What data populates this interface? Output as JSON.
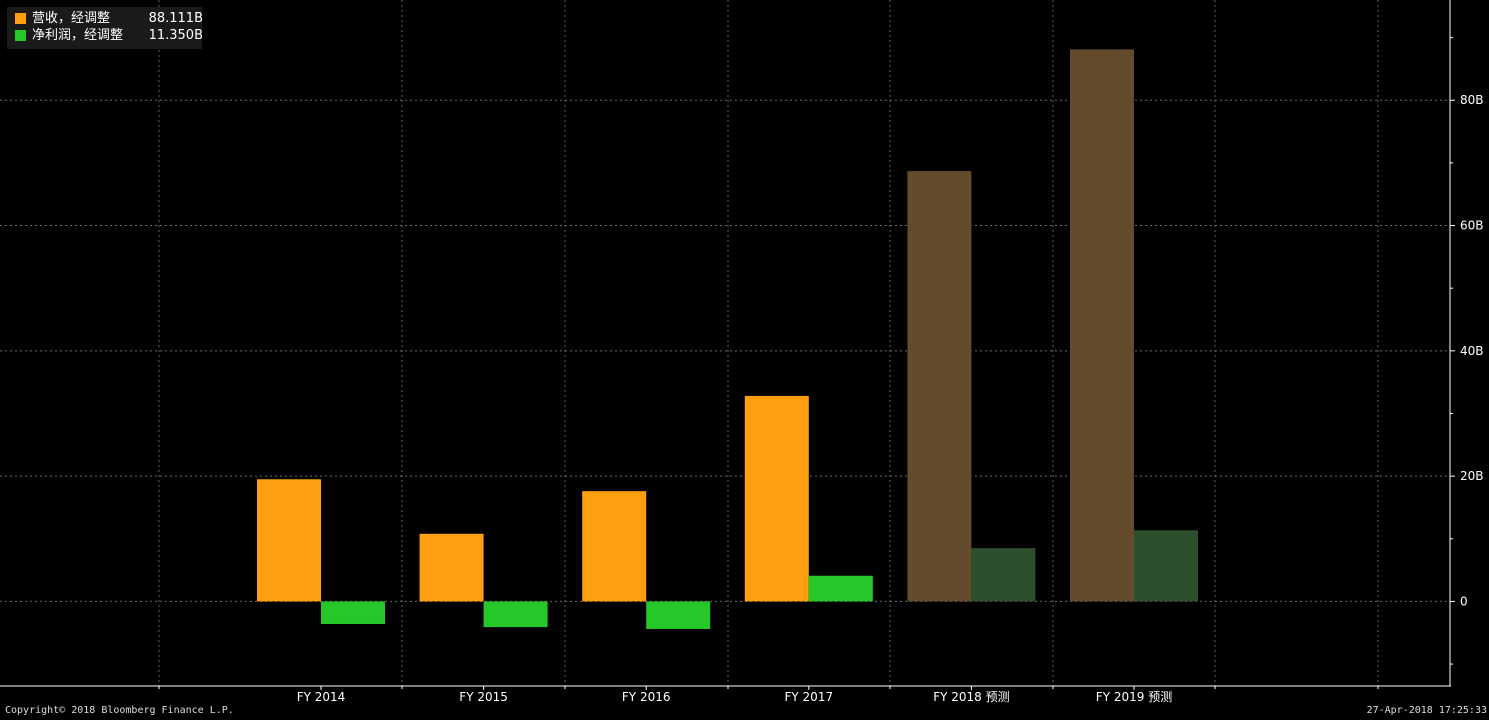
{
  "chart_data": {
    "type": "bar",
    "categories": [
      "FY 2014",
      "FY 2015",
      "FY 2016",
      "FY 2017",
      "FY 2018 预测",
      "FY 2019 预测"
    ],
    "series": [
      {
        "name": "营收，经调整",
        "values": [
          19.5,
          10.8,
          17.6,
          32.8,
          68.7,
          88.111
        ],
        "color": "#ff9f10",
        "estimate_color": "#634b2b"
      },
      {
        "name": "净利润，经调整",
        "values": [
          -3.6,
          -4.1,
          -4.4,
          4.1,
          8.5,
          11.35
        ],
        "color": "#26c729",
        "estimate_color": "#2e4f2e"
      }
    ],
    "estimate_from_index": 4,
    "ylim": [
      -13.5,
      96
    ],
    "yticks": [
      0,
      20,
      40,
      60,
      80
    ],
    "ytick_labels": [
      "0",
      "20B",
      "40B",
      "60B",
      "80B"
    ],
    "grid": true,
    "legend_position": "top-left",
    "legend_values": [
      "88.111B",
      "11.350B"
    ]
  },
  "footer": {
    "copyright": "Copyright© 2018 Bloomberg Finance L.P.",
    "timestamp": "27-Apr-2018 17:25:33"
  }
}
